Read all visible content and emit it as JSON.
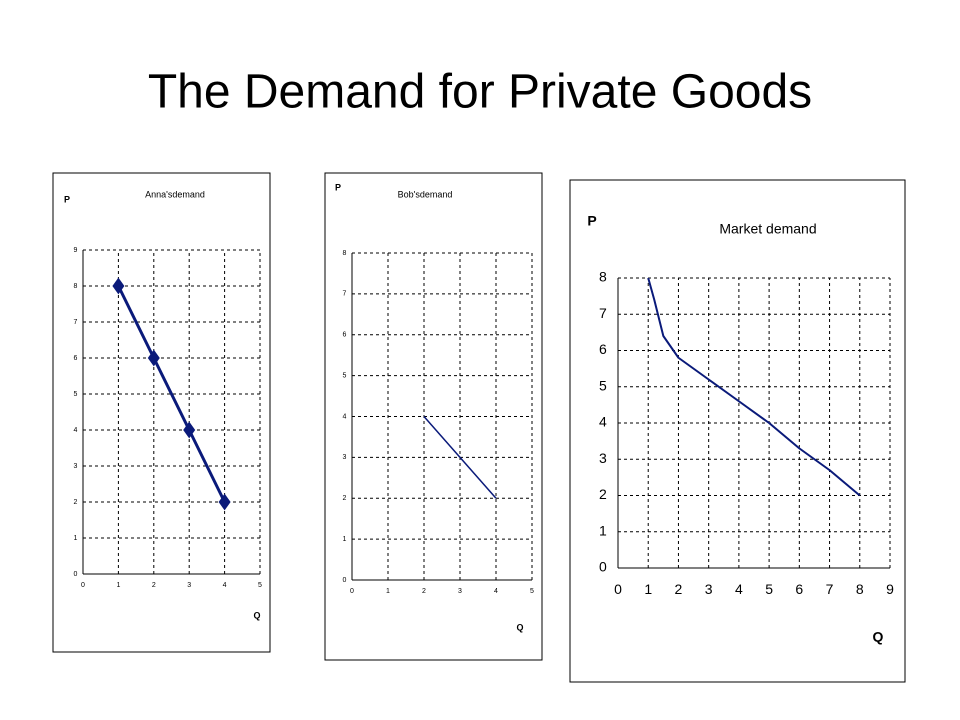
{
  "title": "The Demand for Private Goods",
  "chart_data": [
    {
      "type": "line",
      "title": "Anna'sdemand",
      "ylabel": "P",
      "xlabel": "Q",
      "x": [
        1,
        2,
        3,
        4
      ],
      "values": [
        8,
        6,
        4,
        2
      ],
      "color": "#0a1a7a",
      "markers": true,
      "xlim": [
        0,
        5
      ],
      "ylim": [
        0,
        9
      ],
      "xticks": [
        0,
        1,
        2,
        3,
        4,
        5
      ],
      "yticks": [
        0,
        1,
        2,
        3,
        4,
        5,
        6,
        7,
        8,
        9
      ],
      "grid": true
    },
    {
      "type": "line",
      "title": "Bob'sdemand",
      "ylabel": "P",
      "xlabel": "Q",
      "x": [
        2,
        4
      ],
      "values": [
        4,
        2
      ],
      "color": "#0a1a7a",
      "markers": false,
      "xlim": [
        0,
        5
      ],
      "ylim": [
        0,
        8
      ],
      "xticks": [
        0,
        1,
        2,
        3,
        4,
        5
      ],
      "yticks": [
        0,
        1,
        2,
        3,
        4,
        5,
        6,
        7,
        8
      ],
      "grid": true
    },
    {
      "type": "line",
      "title": "Market demand",
      "ylabel": "P",
      "xlabel": "Q",
      "x": [
        1,
        1.2,
        1.5,
        2,
        3,
        4,
        5,
        6,
        7,
        8
      ],
      "values": [
        8,
        7.4,
        6.4,
        5.8,
        5.2,
        4.6,
        4,
        3.3,
        2.7,
        2
      ],
      "color": "#0a1a7a",
      "markers": false,
      "xlim": [
        0,
        9
      ],
      "ylim": [
        0,
        8
      ],
      "xticks": [
        0,
        1,
        2,
        3,
        4,
        5,
        6,
        7,
        8,
        9
      ],
      "yticks": [
        0,
        1,
        2,
        3,
        4,
        5,
        6,
        7,
        8
      ],
      "grid": true
    }
  ]
}
